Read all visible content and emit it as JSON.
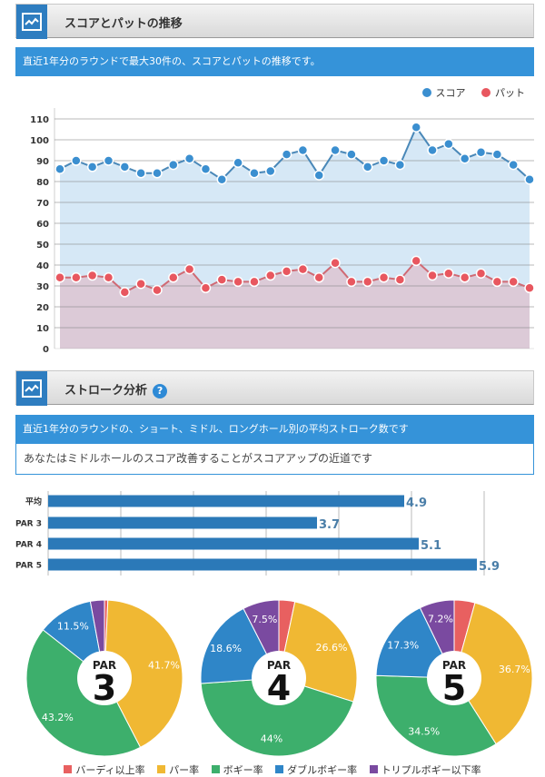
{
  "section1": {
    "title": "スコアとパットの推移",
    "description": "直近1年分のラウンドで最大30件の、スコアとパットの推移です。",
    "icon": "line-chart-icon"
  },
  "section2": {
    "title": "ストローク分析",
    "help_icon": "?",
    "description": "直近1年分のラウンドの、ショート、ミドル、ロングホール別の平均ストローク数です",
    "advice": "あなたはミドルホールのスコア改善することがスコアアップの近道です",
    "icon": "line-chart-icon"
  },
  "colors": {
    "score": "#3b8fd0",
    "putt": "#e8575f",
    "bar": "#2b79b8",
    "birdie": "#e86060",
    "par": "#f0b833",
    "bogey": "#3daf6c",
    "double": "#2f86c8",
    "triple": "#7a4aa0"
  },
  "chart_data": [
    {
      "type": "line",
      "title": "スコアとパットの推移",
      "legend_position": "top-right",
      "ylim": [
        0,
        110
      ],
      "yticks": [
        0,
        10,
        20,
        30,
        40,
        50,
        60,
        70,
        80,
        90,
        100,
        110
      ],
      "grid": true,
      "x": [
        1,
        2,
        3,
        4,
        5,
        6,
        7,
        8,
        9,
        10,
        11,
        12,
        13,
        14,
        15,
        16,
        17,
        18,
        19,
        20,
        21,
        22,
        23,
        24,
        25,
        26,
        27,
        28,
        29,
        30
      ],
      "series": [
        {
          "name": "スコア",
          "values": [
            86,
            90,
            87,
            90,
            87,
            84,
            84,
            88,
            91,
            86,
            81,
            89,
            84,
            85,
            93,
            95,
            83,
            95,
            93,
            87,
            90,
            88,
            106,
            95,
            98,
            91,
            94,
            93,
            88,
            81
          ]
        },
        {
          "name": "パット",
          "values": [
            34,
            34,
            35,
            34,
            27,
            31,
            28,
            34,
            38,
            29,
            33,
            32,
            32,
            35,
            37,
            38,
            34,
            41,
            32,
            32,
            34,
            33,
            42,
            35,
            36,
            34,
            36,
            32,
            32,
            29
          ]
        }
      ]
    },
    {
      "type": "bar",
      "orientation": "horizontal",
      "categories": [
        "平均",
        "PAR 3",
        "PAR 4",
        "PAR 5"
      ],
      "values": [
        4.9,
        3.7,
        5.1,
        5.9
      ],
      "labels": [
        "4.9",
        "3.7",
        "5.1",
        "5.9"
      ],
      "xlim": [
        0,
        6
      ],
      "grid": true
    },
    {
      "type": "pie",
      "center_label": "PAR",
      "center_number": "3",
      "categories": [
        "バーディ以上率",
        "パー率",
        "ボギー率",
        "ダブルボギー率",
        "トリプルボギー以下率"
      ],
      "values": [
        0.7,
        41.7,
        43.2,
        11.5,
        2.9
      ],
      "labels": [
        "",
        "41.7%",
        "43.2%",
        "11.5%",
        ""
      ]
    },
    {
      "type": "pie",
      "center_label": "PAR",
      "center_number": "4",
      "categories": [
        "バーディ以上率",
        "パー率",
        "ボギー率",
        "ダブルボギー率",
        "トリプルボギー以下率"
      ],
      "values": [
        3.3,
        26.6,
        44,
        18.6,
        7.5
      ],
      "labels": [
        "",
        "26.6%",
        "44%",
        "18.6%",
        "7.5%"
      ]
    },
    {
      "type": "pie",
      "center_label": "PAR",
      "center_number": "5",
      "categories": [
        "バーディ以上率",
        "パー率",
        "ボギー率",
        "ダブルボギー率",
        "トリプルボギー以下率"
      ],
      "values": [
        4.3,
        36.7,
        34.5,
        17.3,
        7.2
      ],
      "labels": [
        "",
        "36.7%",
        "34.5%",
        "17.3%",
        "7.2%"
      ]
    }
  ],
  "pie_legend": [
    "バーディ以上率",
    "パー率",
    "ボギー率",
    "ダブルボギー率",
    "トリプルボギー以下率"
  ]
}
